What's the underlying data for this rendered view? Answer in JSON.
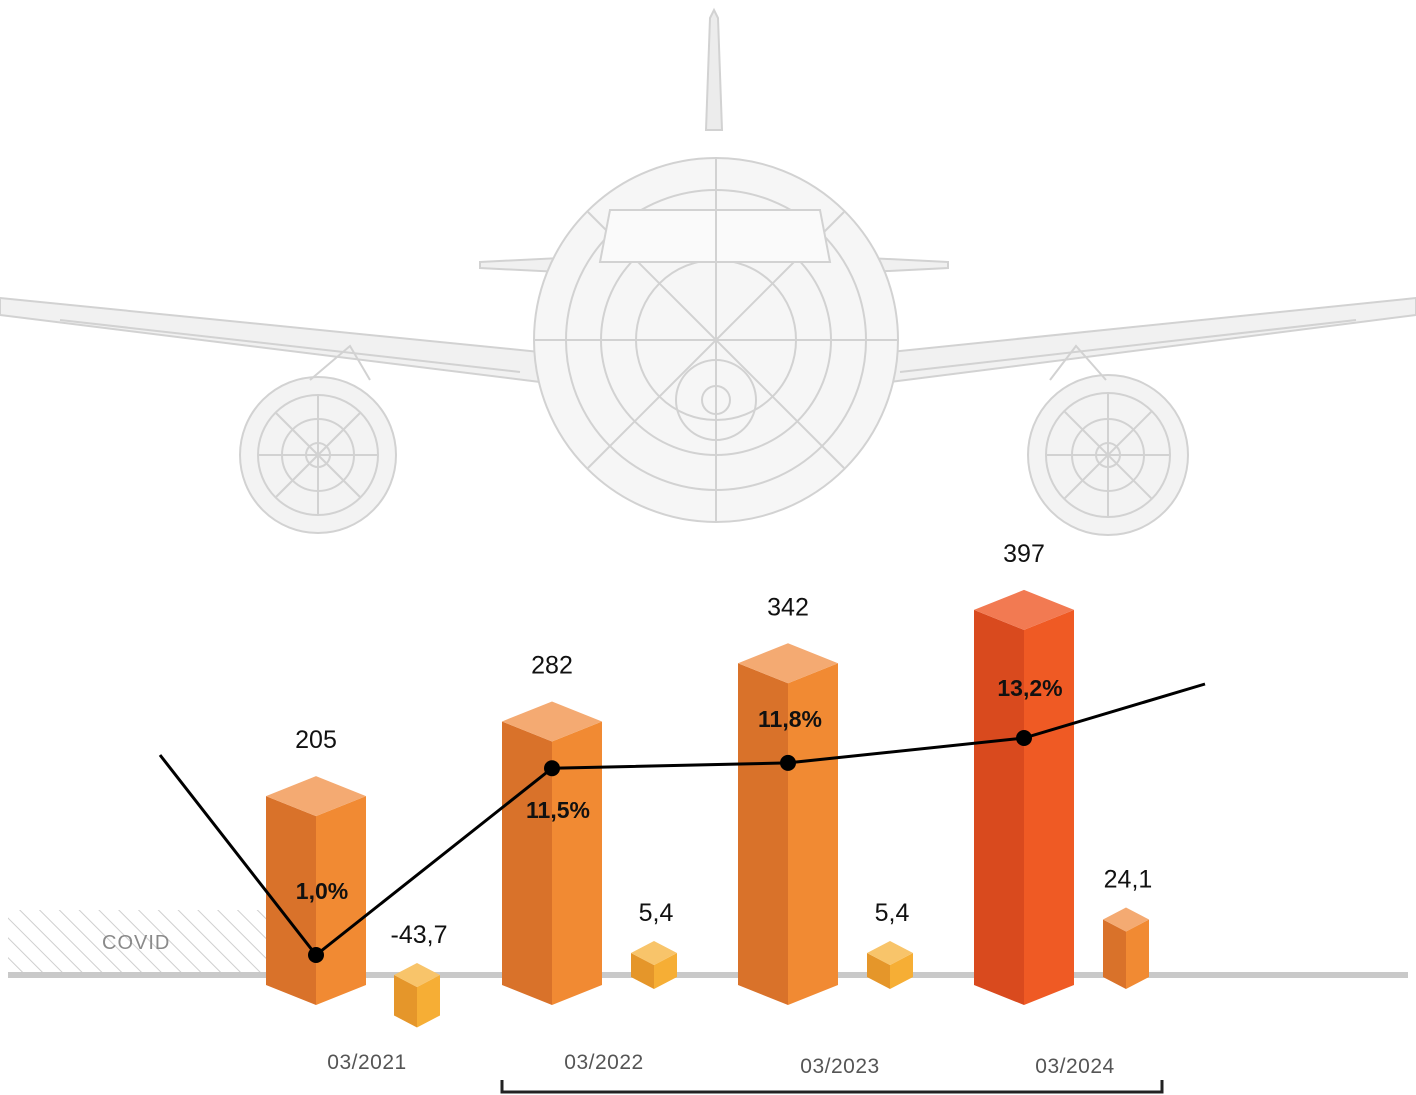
{
  "chart_data": {
    "type": "bar",
    "categories": [
      "03/2021",
      "03/2022",
      "03/2023",
      "03/2024"
    ],
    "series": [
      {
        "values": [
          205,
          282,
          342,
          397
        ]
      },
      {
        "values": [
          -43.7,
          5.4,
          5.4,
          24.1
        ]
      },
      {
        "values": [
          1.0,
          11.5,
          11.8,
          13.2
        ]
      }
    ],
    "value_labels": [
      "205",
      "282",
      "342",
      "397"
    ],
    "change_labels": [
      "-43,7",
      "5,4",
      "5,4",
      "24,1"
    ],
    "percent_labels": [
      "1,0%",
      "11,5%",
      "11,8%",
      "13,2%"
    ],
    "covid_label": "COVID",
    "colors": {
      "bar_front": "#f18a33",
      "bar_side": "#d9722a",
      "bar_top": "#f4aa72",
      "bar_last_front": "#ef5a24",
      "bar_last_side": "#d94a1e",
      "bar_last_top": "#f27a52",
      "small_front": "#f6ae35",
      "small_side": "#e5962a",
      "small_top": "#f8c46a",
      "line": "#000000",
      "baseline": "#c9c9c9",
      "plane": "#d0d0d0"
    },
    "background_image": "airplane-wireframe-icon"
  }
}
